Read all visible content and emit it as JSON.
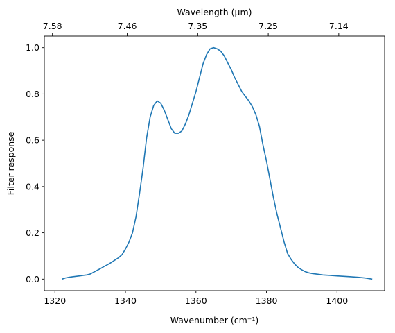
{
  "chart_data": {
    "type": "line",
    "xlabel": "Wavenumber (cm⁻¹)",
    "ylabel": "Filter response",
    "top_xlabel": "Wavelength (μm)",
    "xlim": [
      1317,
      1413.5
    ],
    "ylim": [
      -0.05,
      1.05
    ],
    "x_ticks": [
      1320,
      1340,
      1360,
      1380,
      1400
    ],
    "y_ticks": [
      0.0,
      0.2,
      0.4,
      0.6,
      0.8,
      1.0
    ],
    "x_tick_labels": [
      "1320",
      "1340",
      "1360",
      "1380",
      "1400"
    ],
    "y_tick_labels": [
      "0.0",
      "0.2",
      "0.4",
      "0.6",
      "0.8",
      "1.0"
    ],
    "top_ticks": [
      {
        "wavenumber": 1319.3,
        "label": "7.58"
      },
      {
        "wavenumber": 1340.5,
        "label": "7.46"
      },
      {
        "wavenumber": 1360.5,
        "label": "7.35"
      },
      {
        "wavenumber": 1380.5,
        "label": "7.25"
      },
      {
        "wavenumber": 1400.5,
        "label": "7.14"
      }
    ],
    "grid": false,
    "line_color": "#1f77b4",
    "series": [
      {
        "x": [
          1322,
          1323,
          1324,
          1325,
          1326,
          1327,
          1328,
          1329,
          1330,
          1331,
          1332,
          1333,
          1334,
          1335,
          1336,
          1337,
          1338,
          1339,
          1340,
          1341,
          1342,
          1343,
          1344,
          1345,
          1346,
          1347,
          1348,
          1349,
          1350,
          1351,
          1352,
          1353,
          1354,
          1355,
          1356,
          1357,
          1358,
          1359,
          1360,
          1361,
          1362,
          1363,
          1364,
          1365,
          1366,
          1367,
          1368,
          1369,
          1370,
          1371,
          1372,
          1373,
          1374,
          1375,
          1376,
          1377,
          1378,
          1379,
          1380,
          1381,
          1382,
          1383,
          1384,
          1385,
          1386,
          1387,
          1388,
          1389,
          1390,
          1391,
          1392,
          1393,
          1394,
          1396,
          1398,
          1400,
          1402,
          1404,
          1406,
          1408,
          1410
        ],
        "y": [
          0.0,
          0.005,
          0.008,
          0.01,
          0.012,
          0.014,
          0.016,
          0.018,
          0.022,
          0.03,
          0.038,
          0.046,
          0.055,
          0.063,
          0.072,
          0.082,
          0.092,
          0.105,
          0.13,
          0.16,
          0.2,
          0.27,
          0.37,
          0.48,
          0.61,
          0.7,
          0.75,
          0.77,
          0.76,
          0.73,
          0.69,
          0.65,
          0.63,
          0.63,
          0.64,
          0.67,
          0.71,
          0.76,
          0.81,
          0.87,
          0.93,
          0.97,
          0.995,
          1.0,
          0.995,
          0.985,
          0.965,
          0.935,
          0.905,
          0.87,
          0.84,
          0.81,
          0.79,
          0.77,
          0.745,
          0.71,
          0.66,
          0.58,
          0.51,
          0.43,
          0.35,
          0.28,
          0.22,
          0.16,
          0.11,
          0.085,
          0.065,
          0.05,
          0.04,
          0.032,
          0.027,
          0.024,
          0.022,
          0.018,
          0.016,
          0.014,
          0.012,
          0.01,
          0.008,
          0.005,
          0.0
        ]
      }
    ]
  }
}
